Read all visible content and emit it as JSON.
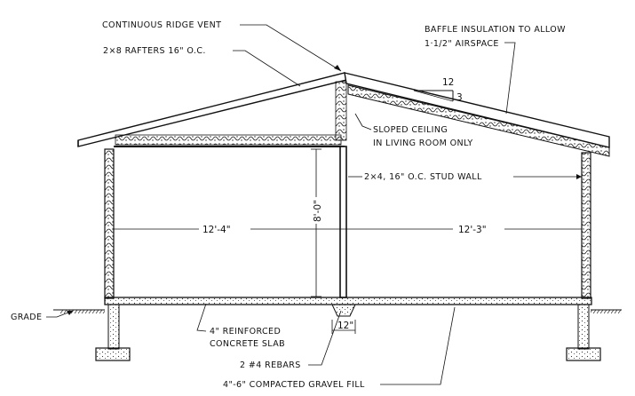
{
  "drawing": {
    "labels": {
      "ridge_vent": "CONTINUOUS RIDGE VENT",
      "rafters": "2×8 RAFTERS 16\" O.C.",
      "baffle_line1": "BAFFLE INSULATION TO ALLOW",
      "baffle_line2": "1·1/2\" AIRSPACE",
      "slope_run": "12",
      "slope_rise": "3",
      "sloped_ceiling_line1": "SLOPED CEILING",
      "sloped_ceiling_line2": "IN LIVING ROOM ONLY",
      "stud_wall": "2×4, 16\" O.C. STUD WALL",
      "height": "8'-0\"",
      "left_span": "12'-4\"",
      "right_span": "12'-3\"",
      "grade": "GRADE",
      "slab_line1": "4\" REINFORCED",
      "slab_line2": "CONCRETE SLAB",
      "footing_width": "12\"",
      "rebars": "2 #4 REBARS",
      "gravel": "4\"-6\" COMPACTED GRAVEL FILL"
    }
  }
}
